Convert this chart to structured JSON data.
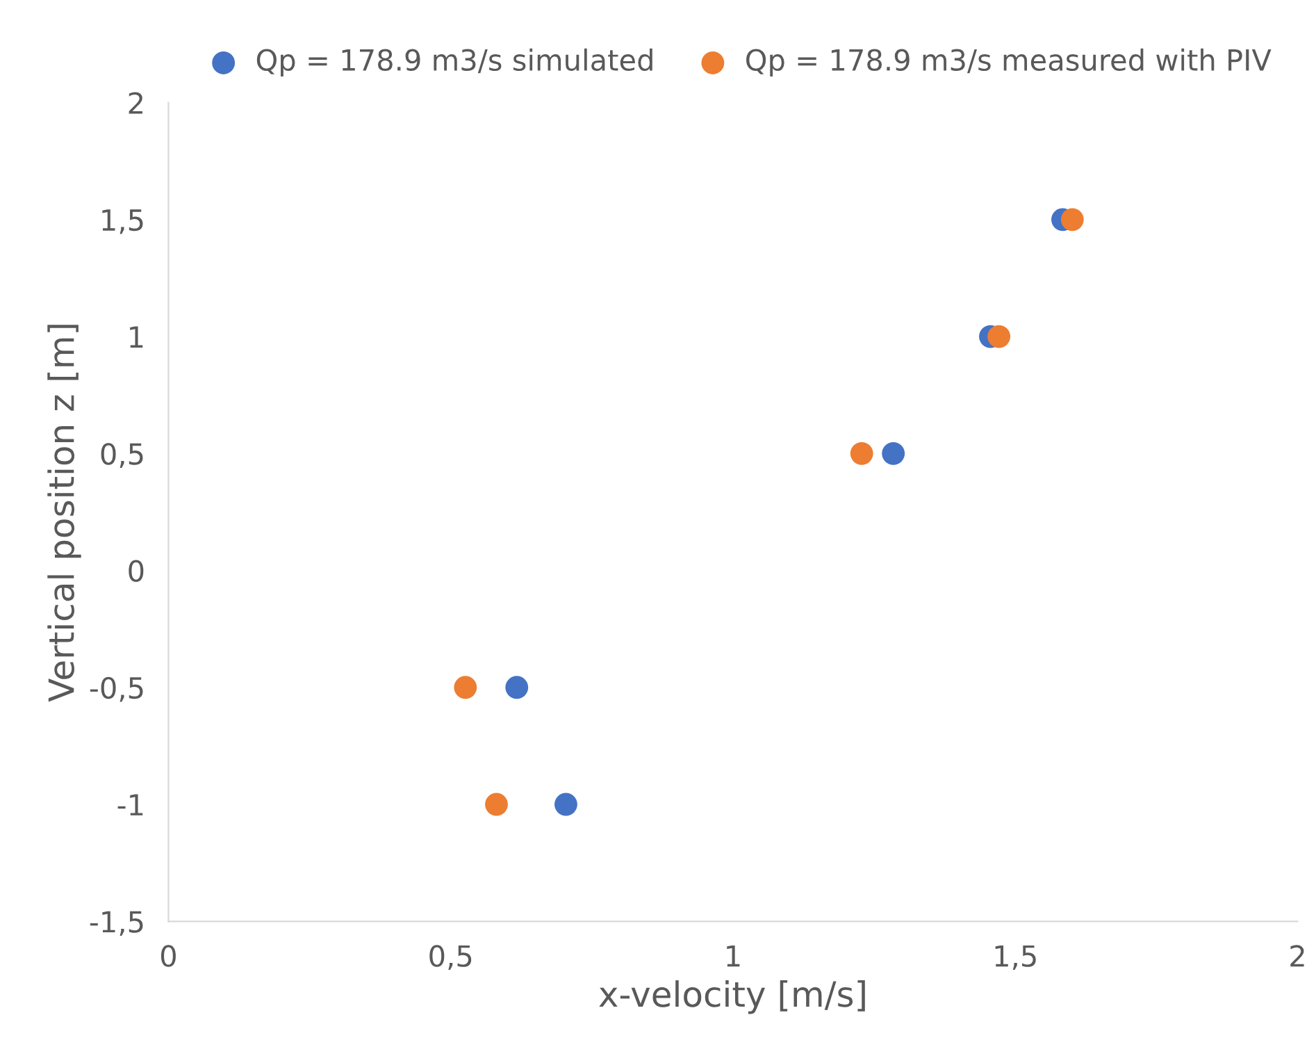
{
  "chart_data": {
    "type": "scatter",
    "xlabel": "x-velocity [m/s]",
    "ylabel": "Vertical position z [m]",
    "series": [
      {
        "name": "Qp = 178.9 m3/s simulated",
        "color": "#4472c4",
        "x": [
          0.617,
          0.704,
          1.284,
          1.456,
          1.584
        ],
        "values": [
          -0.5,
          -1,
          0.5,
          1,
          1.5
        ]
      },
      {
        "name": "Qp = 178.9 m3/s measured with PIV",
        "color": "#ed7d31",
        "x": [
          0.526,
          0.581,
          1.228,
          1.471,
          1.601
        ],
        "values": [
          -0.5,
          -1,
          0.5,
          1,
          1.5
        ]
      }
    ],
    "xlim": [
      0,
      2
    ],
    "xticks": [
      0,
      {
        "value": 0.5,
        "label": "0,5"
      },
      1,
      {
        "value": 1.5,
        "label": "1,5"
      },
      2
    ],
    "ylim": [
      -1.5,
      2
    ],
    "yticks": [
      {
        "value": -1.5,
        "label": "-1,5"
      },
      -1,
      {
        "value": -0.5,
        "label": "-0,5"
      },
      0,
      {
        "value": 0.5,
        "label": "0,5"
      },
      1,
      {
        "value": 1.5,
        "label": "1,5"
      },
      2
    ],
    "grid": false,
    "legend": "top",
    "marker": "circle"
  }
}
